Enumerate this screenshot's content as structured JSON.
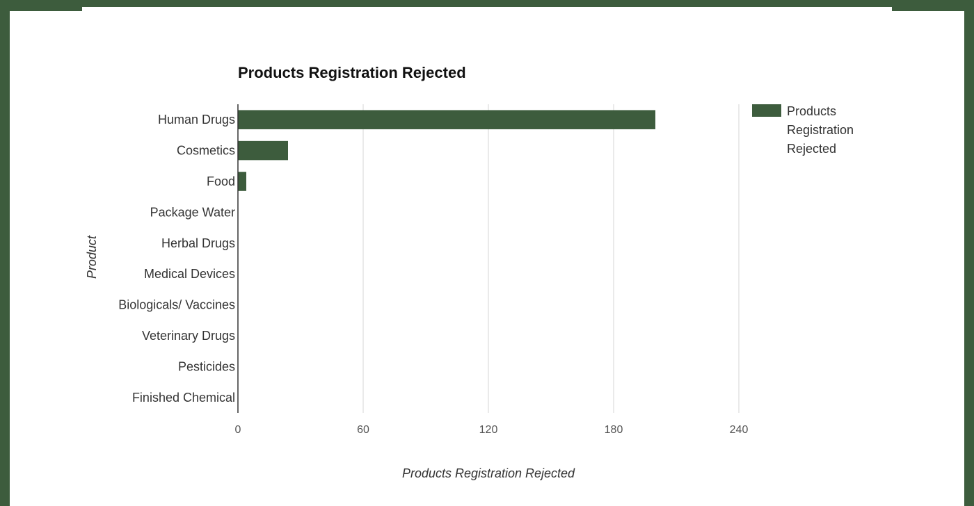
{
  "chart_data": {
    "type": "bar",
    "orientation": "horizontal",
    "title": "Products Registration Rejected",
    "xlabel": "Products Registration Rejected",
    "ylabel": "Product",
    "categories": [
      "Human Drugs",
      "Cosmetics",
      "Food",
      "Package Water",
      "Herbal Drugs",
      "Medical Devices",
      "Biologicals/ Vaccines",
      "Veterinary Drugs",
      "Pesticides",
      "Finished Chemical"
    ],
    "series": [
      {
        "name": "Products Registration Rejected",
        "values": [
          200,
          24,
          4,
          0,
          0,
          0,
          0,
          0,
          0,
          0
        ],
        "color": "#3d5c3d"
      }
    ],
    "xlim": [
      0,
      240
    ],
    "xticks": [
      0,
      60,
      120,
      180,
      240
    ],
    "grid": true,
    "legend": {
      "position": "right",
      "label_lines": [
        "Products",
        "Registration",
        "Rejected"
      ]
    }
  }
}
